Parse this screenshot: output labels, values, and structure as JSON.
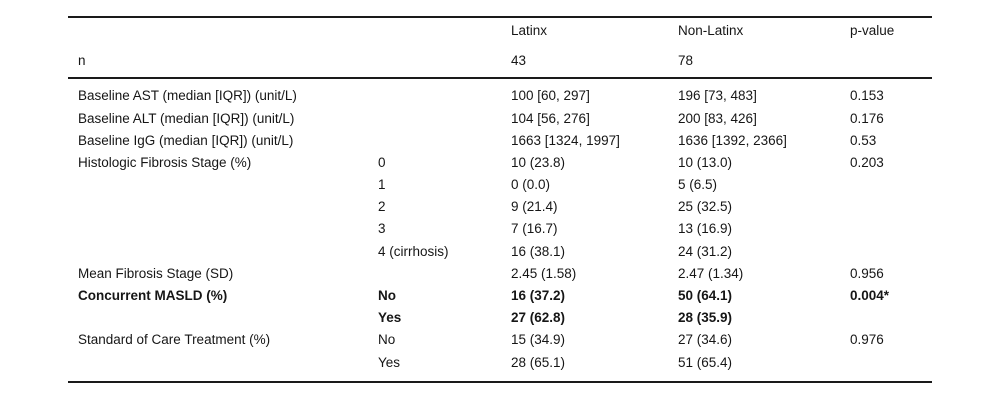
{
  "page": {
    "background": "#ffffff",
    "text_color": "#161616",
    "rule_color": "#1a1a1a"
  },
  "table": {
    "header": {
      "group_col1": "Latinx",
      "group_col2": "Non-Latinx",
      "group_col3": "p-value",
      "n_label": "n",
      "n_latinx": "43",
      "n_non_latinx": "78"
    },
    "rows": [
      {
        "label": "Baseline AST (median [IQR]) (unit/L)",
        "sub": "",
        "latinx": "100 [60, 297]",
        "non_latinx": "196 [73, 483]",
        "p": "0.153",
        "bold": false
      },
      {
        "label": "Baseline ALT (median [IQR]) (unit/L)",
        "sub": "",
        "latinx": "104 [56, 276]",
        "non_latinx": "200 [83, 426]",
        "p": "0.176",
        "bold": false
      },
      {
        "label": "Baseline IgG (median [IQR]) (unit/L)",
        "sub": "",
        "latinx": "1663 [1324, 1997]",
        "non_latinx": "1636 [1392, 2366]",
        "p": "0.53",
        "bold": false
      },
      {
        "label": "Histologic Fibrosis Stage (%)",
        "sub": "0",
        "latinx": "10 (23.8)",
        "non_latinx": "10 (13.0)",
        "p": "0.203",
        "bold": false
      },
      {
        "label": "",
        "sub": "1",
        "latinx": "0 (0.0)",
        "non_latinx": "5 (6.5)",
        "p": "",
        "bold": false
      },
      {
        "label": "",
        "sub": "2",
        "latinx": "9 (21.4)",
        "non_latinx": "25 (32.5)",
        "p": "",
        "bold": false
      },
      {
        "label": "",
        "sub": "3",
        "latinx": "7 (16.7)",
        "non_latinx": "13 (16.9)",
        "p": "",
        "bold": false
      },
      {
        "label": "",
        "sub": "4 (cirrhosis)",
        "latinx": "16 (38.1)",
        "non_latinx": "24 (31.2)",
        "p": "",
        "bold": false
      },
      {
        "label": "Mean Fibrosis Stage (SD)",
        "sub": "",
        "latinx": "2.45 (1.58)",
        "non_latinx": "2.47 (1.34)",
        "p": "0.956",
        "bold": false
      },
      {
        "label": "Concurrent MASLD (%)",
        "sub": "No",
        "latinx": "16 (37.2)",
        "non_latinx": "50 (64.1)",
        "p": "0.004*",
        "bold": true
      },
      {
        "label": "",
        "sub": "Yes",
        "latinx": "27 (62.8)",
        "non_latinx": "28 (35.9)",
        "p": "",
        "bold": true
      },
      {
        "label": "Standard of Care Treatment (%)",
        "sub": "No",
        "latinx": "15 (34.9)",
        "non_latinx": "27 (34.6)",
        "p": "0.976",
        "bold": false
      },
      {
        "label": "",
        "sub": "Yes",
        "latinx": "28 (65.1)",
        "non_latinx": "51 (65.4)",
        "p": "",
        "bold": false
      }
    ]
  }
}
